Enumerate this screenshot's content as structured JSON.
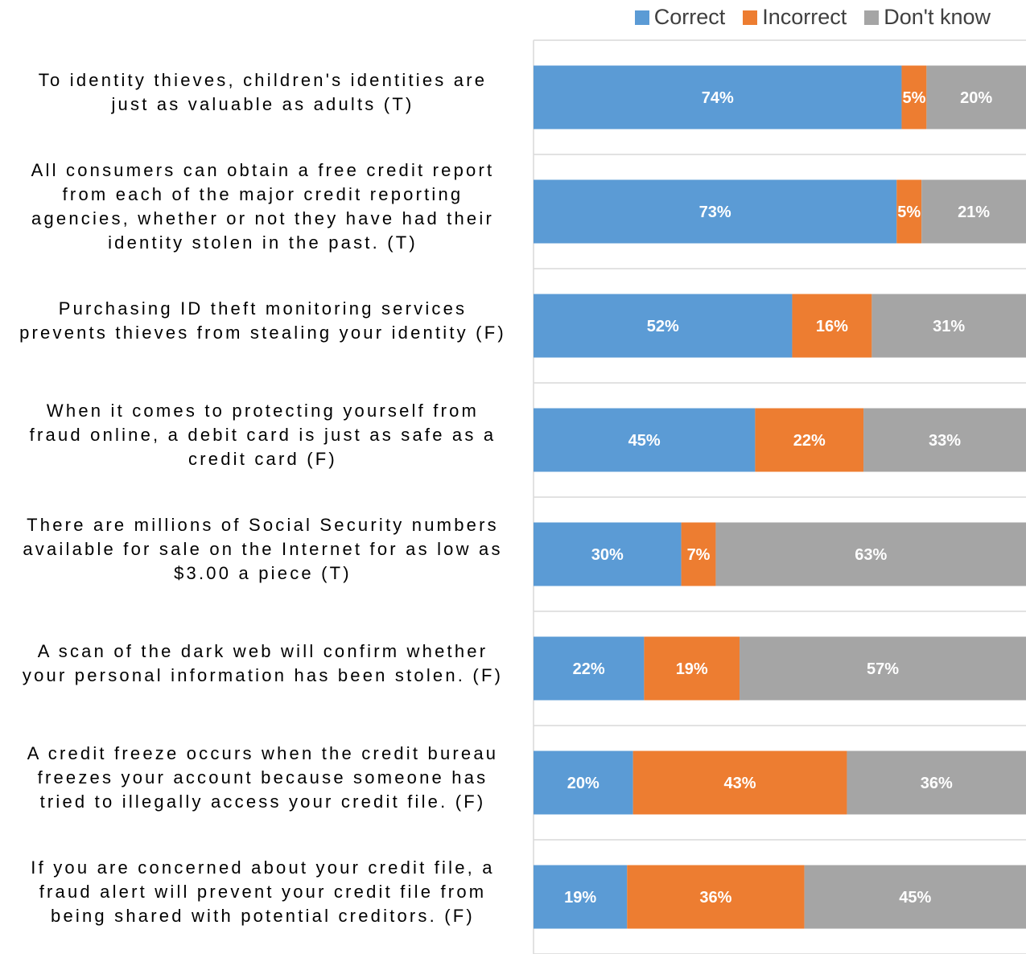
{
  "chart_data": {
    "type": "bar",
    "orientation": "horizontal",
    "stacked": true,
    "percent_stacked": true,
    "legend_position": "top-right",
    "grid": true,
    "categories": [
      "To identity thieves, children's identities are just as valuable as adults (T)",
      "All consumers can obtain a free credit report from each of the major credit reporting agencies, whether or not they have had their identity stolen in the past. (T)",
      "Purchasing ID theft monitoring services prevents thieves from stealing your identity (F)",
      "When it comes to protecting yourself from fraud online, a debit card is just as safe as a credit card (F)",
      "There are millions of Social Security numbers available for sale on the Internet for as low as $3.00 a piece (T)",
      "A scan of the dark web will confirm whether your personal information has been stolen. (F)",
      "A credit freeze occurs when the credit bureau freezes your account because someone has tried to illegally access your credit file. (F)",
      "If you are concerned about your credit file, a fraud alert will prevent your credit file from being shared with potential creditors. (F)"
    ],
    "series": [
      {
        "name": "Correct",
        "color": "#5B9BD5",
        "values": [
          74,
          73,
          52,
          45,
          30,
          22,
          20,
          19
        ]
      },
      {
        "name": "Incorrect",
        "color": "#ED7D31",
        "values": [
          5,
          5,
          16,
          22,
          7,
          19,
          43,
          36
        ]
      },
      {
        "name": "Don't know",
        "color": "#A5A5A5",
        "values": [
          20,
          21,
          31,
          33,
          63,
          57,
          36,
          45
        ]
      }
    ],
    "value_suffix": "%"
  },
  "labels": {
    "lines": [
      [
        "To identity thieves, children's identities are",
        "just as valuable as adults (T)"
      ],
      [
        "All consumers can obtain a free credit report",
        "from each of the major credit reporting",
        "agencies, whether or not they have had their",
        "identity stolen in the past. (T)"
      ],
      [
        "Purchasing ID theft monitoring services",
        "prevents thieves from stealing your identity (F)"
      ],
      [
        "When it comes to protecting yourself from",
        "fraud online, a debit card is just as safe as a",
        "credit card (F)"
      ],
      [
        "There are millions of Social Security numbers",
        "available for sale on the Internet for as low as",
        "$3.00 a piece (T)"
      ],
      [
        "A scan of the dark web will confirm whether",
        "your personal information has been stolen. (F)"
      ],
      [
        "A credit freeze occurs when the credit bureau",
        "freezes your account because someone has",
        "tried to illegally access your credit file. (F)"
      ],
      [
        "If you are concerned about your credit file, a",
        "fraud alert will prevent your credit file from",
        "being shared with potential creditors. (F)"
      ]
    ]
  }
}
